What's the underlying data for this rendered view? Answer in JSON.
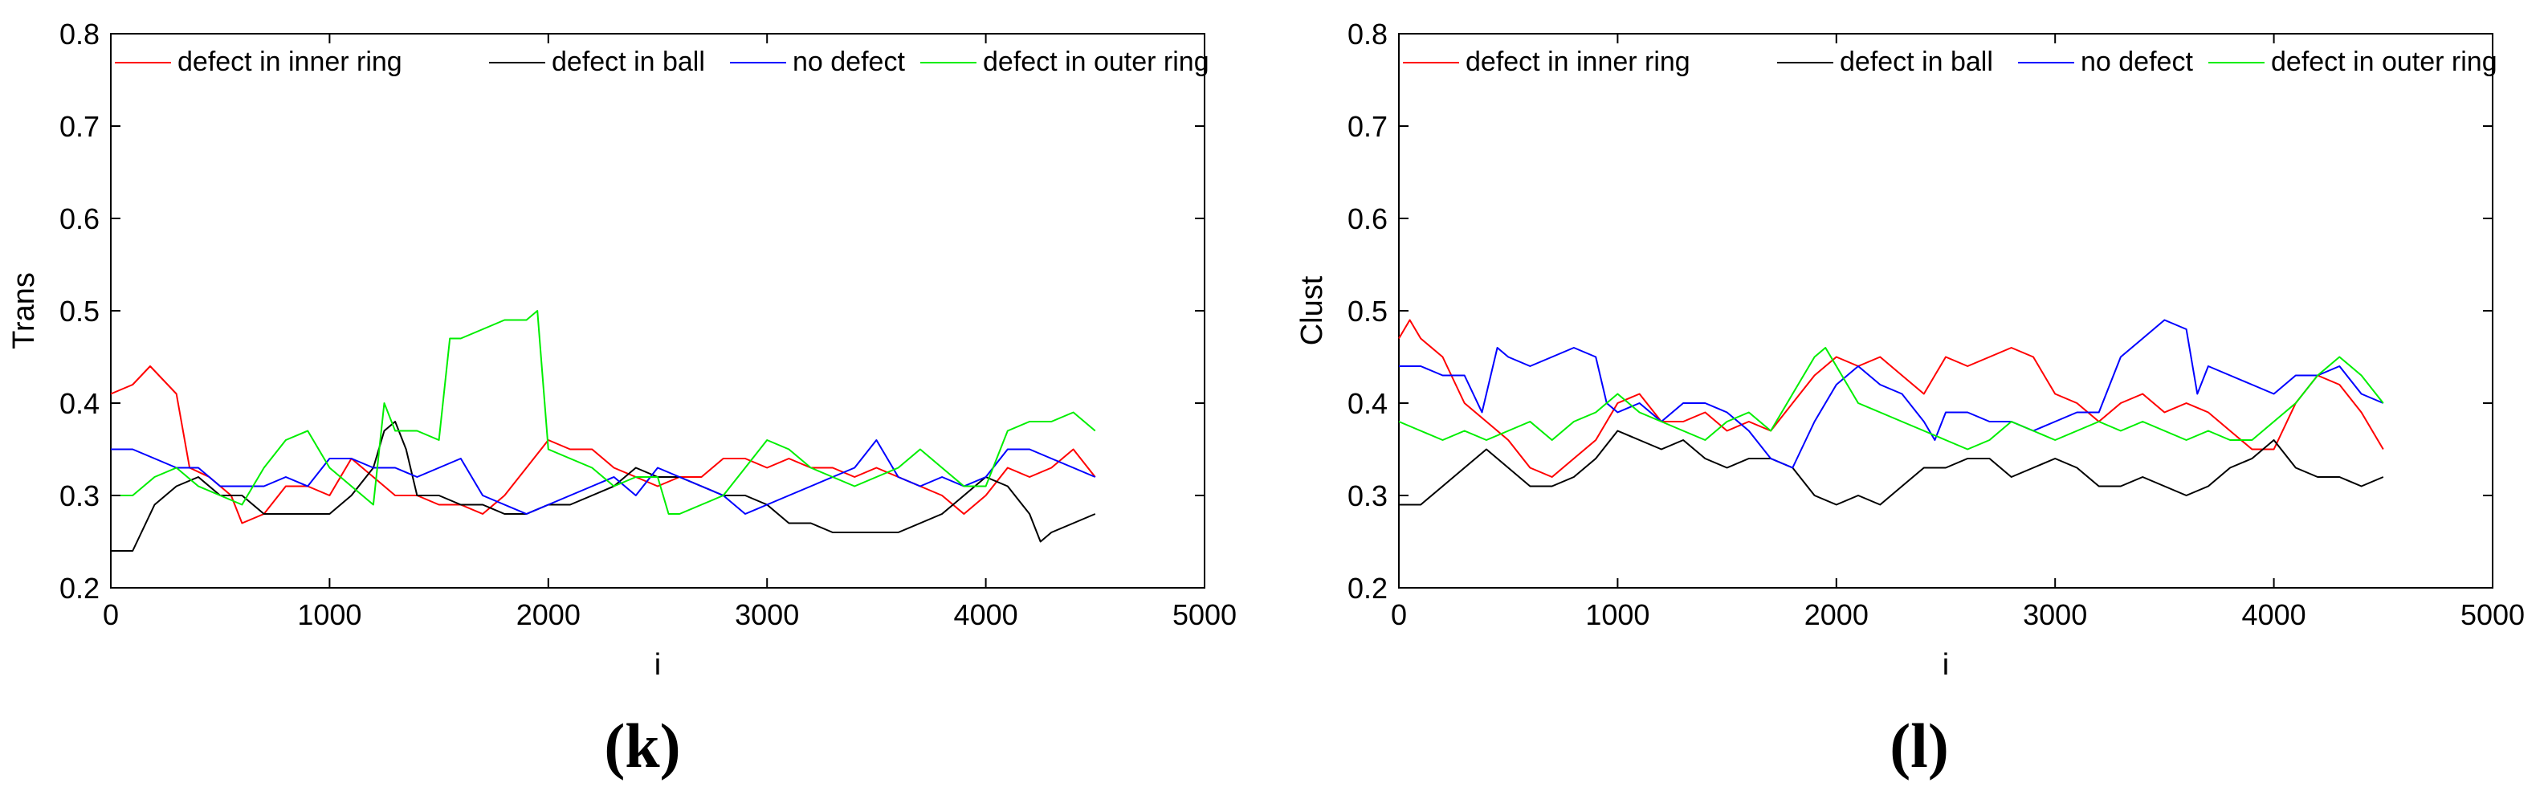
{
  "chart_data": [
    {
      "type": "line",
      "caption": "(k)",
      "xlabel": "i",
      "ylabel": "Trans",
      "xlim": [
        0,
        5000
      ],
      "ylim": [
        0.2,
        0.8
      ],
      "xticks": [
        0,
        1000,
        2000,
        3000,
        4000,
        5000
      ],
      "yticks": [
        0.2,
        0.3,
        0.4,
        0.5,
        0.6,
        0.7,
        0.8
      ],
      "xtick_labels": [
        "0",
        "1000",
        "2000",
        "3000",
        "4000",
        "5000"
      ],
      "ytick_labels": [
        "0.2",
        "0.3",
        "0.4",
        "0.5",
        "0.6",
        "0.7",
        "0.8"
      ],
      "grid": false,
      "legend_position": "top, horizontal",
      "series": [
        {
          "name": "defect in inner ring",
          "color": "#ff0000",
          "x": [
            0,
            100,
            180,
            260,
            300,
            360,
            450,
            550,
            600,
            700,
            800,
            900,
            1000,
            1100,
            1200,
            1300,
            1400,
            1500,
            1600,
            1700,
            1800,
            1900,
            2000,
            2100,
            2200,
            2300,
            2400,
            2500,
            2600,
            2700,
            2800,
            2900,
            3000,
            3100,
            3200,
            3300,
            3400,
            3500,
            3600,
            3700,
            3800,
            3900,
            4000,
            4100,
            4200,
            4300,
            4400,
            4500
          ],
          "y": [
            0.41,
            0.42,
            0.44,
            0.42,
            0.41,
            0.33,
            0.32,
            0.3,
            0.27,
            0.28,
            0.31,
            0.31,
            0.3,
            0.34,
            0.32,
            0.3,
            0.3,
            0.29,
            0.29,
            0.28,
            0.3,
            0.33,
            0.36,
            0.35,
            0.35,
            0.33,
            0.32,
            0.31,
            0.32,
            0.32,
            0.34,
            0.34,
            0.33,
            0.34,
            0.33,
            0.33,
            0.32,
            0.33,
            0.32,
            0.31,
            0.3,
            0.28,
            0.3,
            0.33,
            0.32,
            0.33,
            0.35,
            0.32
          ]
        },
        {
          "name": "defect in ball",
          "color": "#000000",
          "x": [
            0,
            100,
            200,
            300,
            400,
            500,
            600,
            700,
            800,
            900,
            1000,
            1100,
            1200,
            1250,
            1300,
            1350,
            1400,
            1500,
            1600,
            1700,
            1800,
            1900,
            2000,
            2100,
            2200,
            2300,
            2400,
            2500,
            2600,
            2700,
            2800,
            2900,
            3000,
            3100,
            3200,
            3300,
            3400,
            3500,
            3600,
            3700,
            3800,
            3900,
            4000,
            4100,
            4200,
            4250,
            4300,
            4400,
            4500
          ],
          "y": [
            0.24,
            0.24,
            0.29,
            0.31,
            0.32,
            0.3,
            0.3,
            0.28,
            0.28,
            0.28,
            0.28,
            0.3,
            0.33,
            0.37,
            0.38,
            0.35,
            0.3,
            0.3,
            0.29,
            0.29,
            0.28,
            0.28,
            0.29,
            0.29,
            0.3,
            0.31,
            0.33,
            0.32,
            0.32,
            0.31,
            0.3,
            0.3,
            0.29,
            0.27,
            0.27,
            0.26,
            0.26,
            0.26,
            0.26,
            0.27,
            0.28,
            0.3,
            0.32,
            0.31,
            0.28,
            0.25,
            0.26,
            0.27,
            0.28
          ]
        },
        {
          "name": "no defect",
          "color": "#0000ff",
          "x": [
            0,
            100,
            200,
            300,
            400,
            500,
            600,
            700,
            800,
            900,
            1000,
            1100,
            1200,
            1300,
            1400,
            1500,
            1600,
            1700,
            1800,
            1900,
            2000,
            2100,
            2200,
            2300,
            2400,
            2500,
            2600,
            2700,
            2800,
            2900,
            3000,
            3100,
            3200,
            3300,
            3400,
            3500,
            3600,
            3700,
            3800,
            3900,
            4000,
            4100,
            4200,
            4300,
            4400,
            4500
          ],
          "y": [
            0.35,
            0.35,
            0.34,
            0.33,
            0.33,
            0.31,
            0.31,
            0.31,
            0.32,
            0.31,
            0.34,
            0.34,
            0.33,
            0.33,
            0.32,
            0.33,
            0.34,
            0.3,
            0.29,
            0.28,
            0.29,
            0.3,
            0.31,
            0.32,
            0.3,
            0.33,
            0.32,
            0.31,
            0.3,
            0.28,
            0.29,
            0.3,
            0.31,
            0.32,
            0.33,
            0.36,
            0.32,
            0.31,
            0.32,
            0.31,
            0.32,
            0.35,
            0.35,
            0.34,
            0.33,
            0.32
          ]
        },
        {
          "name": "defect in outer ring",
          "color": "#00ee00",
          "x": [
            0,
            100,
            200,
            300,
            400,
            500,
            600,
            700,
            800,
            900,
            1000,
            1100,
            1200,
            1250,
            1300,
            1400,
            1500,
            1550,
            1600,
            1700,
            1800,
            1900,
            1950,
            2000,
            2100,
            2200,
            2300,
            2400,
            2500,
            2550,
            2600,
            2700,
            2800,
            2900,
            3000,
            3100,
            3200,
            3300,
            3400,
            3500,
            3600,
            3700,
            3800,
            3900,
            4000,
            4100,
            4200,
            4300,
            4400,
            4500
          ],
          "y": [
            0.3,
            0.3,
            0.32,
            0.33,
            0.31,
            0.3,
            0.29,
            0.33,
            0.36,
            0.37,
            0.33,
            0.31,
            0.29,
            0.4,
            0.37,
            0.37,
            0.36,
            0.47,
            0.47,
            0.48,
            0.49,
            0.49,
            0.5,
            0.35,
            0.34,
            0.33,
            0.31,
            0.32,
            0.32,
            0.28,
            0.28,
            0.29,
            0.3,
            0.33,
            0.36,
            0.35,
            0.33,
            0.32,
            0.31,
            0.32,
            0.33,
            0.35,
            0.33,
            0.31,
            0.31,
            0.37,
            0.38,
            0.38,
            0.39,
            0.37
          ]
        }
      ]
    },
    {
      "type": "line",
      "caption": "(l)",
      "xlabel": "i",
      "ylabel": "Clust",
      "xlim": [
        0,
        5000
      ],
      "ylim": [
        0.2,
        0.8
      ],
      "xticks": [
        0,
        1000,
        2000,
        3000,
        4000,
        5000
      ],
      "yticks": [
        0.2,
        0.3,
        0.4,
        0.5,
        0.6,
        0.7,
        0.8
      ],
      "xtick_labels": [
        "0",
        "1000",
        "2000",
        "3000",
        "4000",
        "5000"
      ],
      "ytick_labels": [
        "0.2",
        "0.3",
        "0.4",
        "0.5",
        "0.6",
        "0.7",
        "0.8"
      ],
      "grid": false,
      "legend_position": "top, horizontal",
      "series": [
        {
          "name": "defect in inner ring",
          "color": "#ff0000",
          "x": [
            0,
            50,
            100,
            200,
            300,
            400,
            500,
            600,
            700,
            800,
            900,
            1000,
            1100,
            1200,
            1300,
            1400,
            1500,
            1600,
            1700,
            1800,
            1900,
            2000,
            2100,
            2200,
            2300,
            2400,
            2500,
            2600,
            2700,
            2800,
            2900,
            3000,
            3100,
            3200,
            3300,
            3400,
            3500,
            3600,
            3700,
            3800,
            3900,
            4000,
            4100,
            4200,
            4300,
            4400,
            4500
          ],
          "y": [
            0.47,
            0.49,
            0.47,
            0.45,
            0.4,
            0.38,
            0.36,
            0.33,
            0.32,
            0.34,
            0.36,
            0.4,
            0.41,
            0.38,
            0.38,
            0.39,
            0.37,
            0.38,
            0.37,
            0.4,
            0.43,
            0.45,
            0.44,
            0.45,
            0.43,
            0.41,
            0.45,
            0.44,
            0.45,
            0.46,
            0.45,
            0.41,
            0.4,
            0.38,
            0.4,
            0.41,
            0.39,
            0.4,
            0.39,
            0.37,
            0.35,
            0.35,
            0.4,
            0.43,
            0.42,
            0.39,
            0.35
          ]
        },
        {
          "name": "defect in ball",
          "color": "#000000",
          "x": [
            0,
            100,
            200,
            300,
            400,
            500,
            600,
            700,
            800,
            900,
            1000,
            1100,
            1200,
            1300,
            1400,
            1500,
            1600,
            1700,
            1800,
            1900,
            2000,
            2100,
            2200,
            2300,
            2400,
            2500,
            2600,
            2700,
            2800,
            2900,
            3000,
            3100,
            3200,
            3300,
            3400,
            3500,
            3600,
            3700,
            3800,
            3900,
            4000,
            4100,
            4200,
            4300,
            4400,
            4500
          ],
          "y": [
            0.29,
            0.29,
            0.31,
            0.33,
            0.35,
            0.33,
            0.31,
            0.31,
            0.32,
            0.34,
            0.37,
            0.36,
            0.35,
            0.36,
            0.34,
            0.33,
            0.34,
            0.34,
            0.33,
            0.3,
            0.29,
            0.3,
            0.29,
            0.31,
            0.33,
            0.33,
            0.34,
            0.34,
            0.32,
            0.33,
            0.34,
            0.33,
            0.31,
            0.31,
            0.32,
            0.31,
            0.3,
            0.31,
            0.33,
            0.34,
            0.36,
            0.33,
            0.32,
            0.32,
            0.31,
            0.32
          ]
        },
        {
          "name": "no defect",
          "color": "#0000ff",
          "x": [
            0,
            100,
            200,
            300,
            380,
            450,
            500,
            600,
            700,
            800,
            900,
            950,
            1000,
            1100,
            1200,
            1300,
            1400,
            1500,
            1600,
            1700,
            1800,
            1900,
            2000,
            2100,
            2200,
            2300,
            2400,
            2450,
            2500,
            2600,
            2700,
            2800,
            2900,
            3000,
            3100,
            3200,
            3300,
            3400,
            3500,
            3600,
            3650,
            3700,
            3800,
            3900,
            4000,
            4100,
            4200,
            4300,
            4400,
            4500
          ],
          "y": [
            0.44,
            0.44,
            0.43,
            0.43,
            0.39,
            0.46,
            0.45,
            0.44,
            0.45,
            0.46,
            0.45,
            0.4,
            0.39,
            0.4,
            0.38,
            0.4,
            0.4,
            0.39,
            0.37,
            0.34,
            0.33,
            0.38,
            0.42,
            0.44,
            0.42,
            0.41,
            0.38,
            0.36,
            0.39,
            0.39,
            0.38,
            0.38,
            0.37,
            0.38,
            0.39,
            0.39,
            0.45,
            0.47,
            0.49,
            0.48,
            0.41,
            0.44,
            0.43,
            0.42,
            0.41,
            0.43,
            0.43,
            0.44,
            0.41,
            0.4
          ]
        },
        {
          "name": "defect in outer ring",
          "color": "#00ee00",
          "x": [
            0,
            100,
            200,
            300,
            400,
            500,
            600,
            700,
            800,
            900,
            1000,
            1100,
            1200,
            1300,
            1400,
            1500,
            1600,
            1700,
            1800,
            1900,
            1950,
            2000,
            2100,
            2200,
            2300,
            2400,
            2500,
            2600,
            2700,
            2800,
            2900,
            3000,
            3100,
            3200,
            3300,
            3400,
            3500,
            3600,
            3700,
            3800,
            3900,
            4000,
            4100,
            4200,
            4300,
            4400,
            4500
          ],
          "y": [
            0.38,
            0.37,
            0.36,
            0.37,
            0.36,
            0.37,
            0.38,
            0.36,
            0.38,
            0.39,
            0.41,
            0.39,
            0.38,
            0.37,
            0.36,
            0.38,
            0.39,
            0.37,
            0.41,
            0.45,
            0.46,
            0.44,
            0.4,
            0.39,
            0.38,
            0.37,
            0.36,
            0.35,
            0.36,
            0.38,
            0.37,
            0.36,
            0.37,
            0.38,
            0.37,
            0.38,
            0.37,
            0.36,
            0.37,
            0.36,
            0.36,
            0.38,
            0.4,
            0.43,
            0.45,
            0.43,
            0.4
          ]
        }
      ]
    }
  ]
}
